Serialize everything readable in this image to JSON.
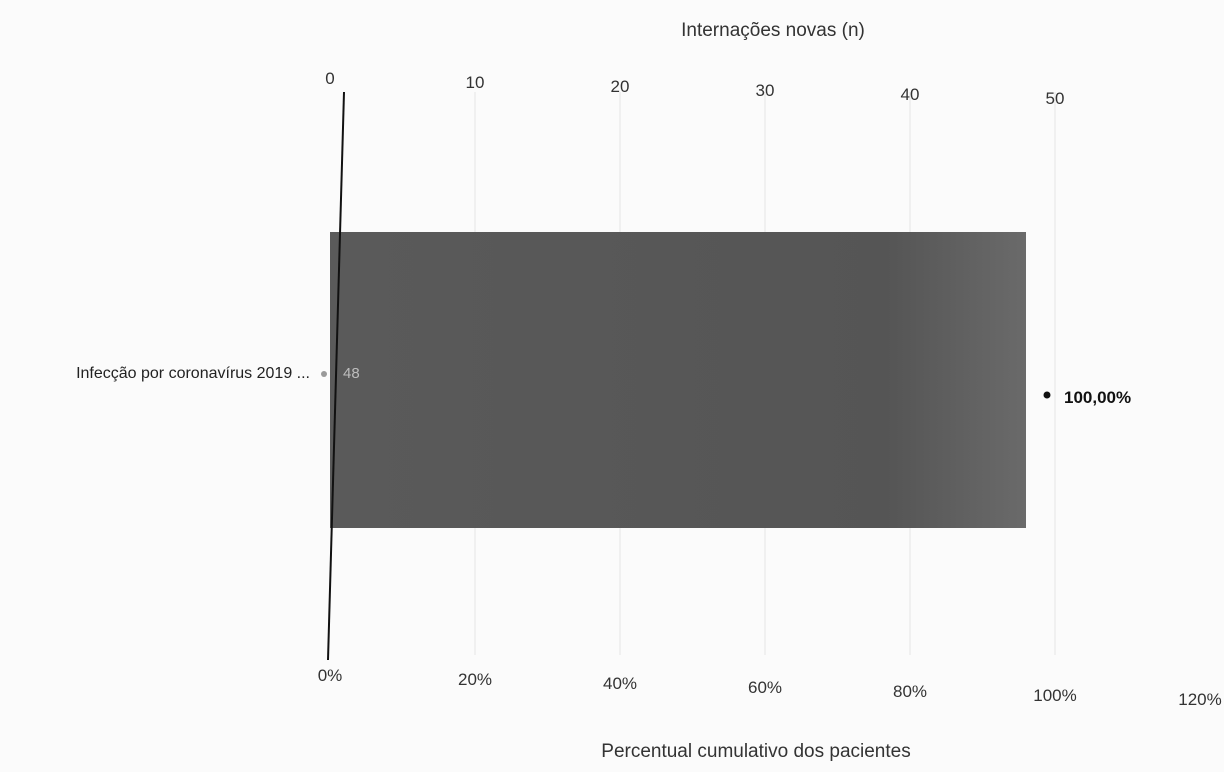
{
  "chart_data": {
    "type": "bar",
    "orientation": "horizontal",
    "categories": [
      "Infecção por coronavírus 2019 ..."
    ],
    "series": [
      {
        "values": [
          48
        ],
        "data_labels": [
          "48"
        ],
        "axis": "top",
        "color": "#555555"
      },
      {
        "values": [
          100
        ],
        "data_labels": [
          "100,00%"
        ],
        "axis": "bottom",
        "marker": "point"
      }
    ],
    "top_axis": {
      "title": "Internações novas (n)",
      "range": [
        0,
        50
      ],
      "ticks": [
        "0",
        "10",
        "20",
        "30",
        "40",
        "50"
      ]
    },
    "bottom_axis": {
      "title": "Percentual cumulativo dos pacientes",
      "range": [
        0,
        120
      ],
      "ticks": [
        "0%",
        "20%",
        "40%",
        "60%",
        "80%",
        "100%",
        "120%"
      ]
    },
    "grid": true,
    "legend": "none"
  }
}
